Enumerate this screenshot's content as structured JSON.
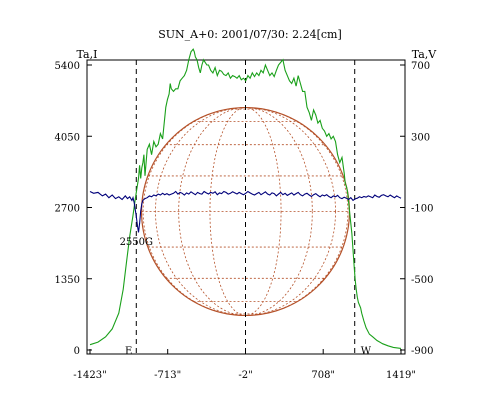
{
  "chart_data": {
    "type": "line",
    "title": "SUN_A+0: 2001/07/30: 2.24[cm]",
    "left_axis": {
      "label": "Ta,I",
      "ticks": [
        0,
        1350,
        2700,
        4050,
        5400
      ],
      "tick_labels": [
        "0",
        "1350",
        "2700",
        "4050",
        "5400"
      ],
      "range": [
        0,
        5400
      ]
    },
    "right_axis": {
      "label": "Ta,V",
      "ticks": [
        -900,
        -500,
        -100,
        300,
        700
      ],
      "tick_labels": [
        "-900",
        "-500",
        "-100",
        "300",
        "700"
      ],
      "range": [
        -900,
        700
      ]
    },
    "x_axis": {
      "ticks": [
        -1423,
        -713,
        -2,
        708,
        1419
      ],
      "tick_labels": [
        "-1423\"",
        "-713\"",
        "-2\"",
        "708\"",
        "1419\""
      ],
      "range": [
        -1423,
        1419
      ]
    },
    "limb_markers": {
      "east": {
        "label": "E",
        "x": -1000
      },
      "center": {
        "x": -2
      },
      "west": {
        "label": "W",
        "x": 996
      }
    },
    "annotations": [
      {
        "text": "2550G",
        "x": -1000,
        "y_v": -250
      }
    ],
    "sun_disk": {
      "center_x": -2,
      "radius_arcsec": 950,
      "color": "#b5522a"
    },
    "grid": false,
    "series": [
      {
        "axis": "left",
        "color": "#1aa01a",
        "x": [
          -1423,
          -1350,
          -1280,
          -1220,
          -1160,
          -1120,
          -1090,
          -1060,
          -1030,
          -1010,
          -995,
          -980,
          -970,
          -960,
          -950,
          -940,
          -930,
          -920,
          -900,
          -880,
          -860,
          -840,
          -820,
          -800,
          -780,
          -760,
          -745,
          -730,
          -715,
          -700,
          -690,
          -680,
          -660,
          -640,
          -620,
          -600,
          -580,
          -560,
          -540,
          -520,
          -500,
          -480,
          -470,
          -460,
          -445,
          -430,
          -415,
          -400,
          -385,
          -370,
          -355,
          -340,
          -320,
          -300,
          -280,
          -260,
          -240,
          -220,
          -200,
          -180,
          -160,
          -140,
          -120,
          -100,
          -80,
          -60,
          -40,
          -20,
          0,
          20,
          40,
          60,
          80,
          100,
          120,
          140,
          160,
          180,
          200,
          220,
          240,
          260,
          280,
          300,
          320,
          340,
          360,
          380,
          400,
          420,
          440,
          460,
          480,
          500,
          520,
          540,
          560,
          580,
          600,
          620,
          640,
          660,
          680,
          700,
          720,
          740,
          760,
          780,
          800,
          820,
          840,
          860,
          880,
          900,
          910,
          920,
          930,
          940,
          950,
          960,
          970,
          980,
          990,
          1000,
          1010,
          1020,
          1030,
          1040,
          1050,
          1060,
          1080,
          1100,
          1130,
          1160,
          1200,
          1250,
          1300,
          1350,
          1419
        ],
        "y": [
          100,
          150,
          250,
          400,
          700,
          1150,
          1650,
          2150,
          2550,
          2850,
          3050,
          3250,
          3500,
          3250,
          3450,
          3550,
          3700,
          3300,
          3800,
          3900,
          3700,
          3950,
          3850,
          3900,
          4100,
          4000,
          4300,
          4600,
          4750,
          4850,
          5050,
          4950,
          4900,
          4950,
          4950,
          5100,
          5150,
          5200,
          5300,
          5500,
          5650,
          5700,
          5650,
          5550,
          5500,
          5350,
          5250,
          5400,
          5500,
          5450,
          5400,
          5400,
          5300,
          5250,
          5350,
          5200,
          5300,
          5280,
          5220,
          5200,
          5250,
          5150,
          5200,
          5180,
          5150,
          5200,
          5120,
          5150,
          5100,
          5200,
          5150,
          5250,
          5180,
          5250,
          5200,
          5300,
          5250,
          5400,
          5300,
          5200,
          5250,
          5180,
          5300,
          5400,
          5450,
          5500,
          5300,
          5200,
          5100,
          5050,
          5150,
          5000,
          5200,
          5050,
          4900,
          4900,
          4600,
          4500,
          4350,
          4550,
          4450,
          4300,
          4350,
          4200,
          4150,
          4050,
          4100,
          4000,
          4050,
          3950,
          3700,
          3550,
          3650,
          3350,
          3150,
          3100,
          3000,
          2800,
          2600,
          2400,
          2200,
          1900,
          1600,
          1350,
          1150,
          1000,
          900,
          850,
          800,
          700,
          550,
          420,
          300,
          250,
          180,
          120,
          80,
          50,
          30
        ]
      },
      {
        "axis": "right",
        "color": "#00007a",
        "x": [
          -1423,
          -1390,
          -1350,
          -1310,
          -1280,
          -1250,
          -1220,
          -1190,
          -1160,
          -1130,
          -1100,
          -1080,
          -1060,
          -1040,
          -1030,
          -1020,
          -1010,
          -1000,
          -990,
          -980,
          -970,
          -960,
          -950,
          -940,
          -930,
          -920,
          -900,
          -880,
          -860,
          -840,
          -820,
          -800,
          -780,
          -760,
          -740,
          -720,
          -700,
          -680,
          -660,
          -640,
          -620,
          -600,
          -580,
          -560,
          -540,
          -520,
          -500,
          -480,
          -460,
          -440,
          -420,
          -400,
          -380,
          -360,
          -340,
          -320,
          -300,
          -280,
          -260,
          -240,
          -220,
          -200,
          -180,
          -160,
          -140,
          -120,
          -100,
          -80,
          -60,
          -40,
          -20,
          0,
          20,
          40,
          60,
          80,
          100,
          120,
          140,
          160,
          180,
          200,
          220,
          240,
          260,
          280,
          300,
          320,
          340,
          360,
          380,
          400,
          420,
          440,
          460,
          480,
          500,
          520,
          540,
          560,
          580,
          600,
          620,
          640,
          660,
          680,
          700,
          720,
          740,
          760,
          780,
          800,
          820,
          840,
          860,
          880,
          900,
          920,
          940,
          960,
          980,
          1000,
          1020,
          1040,
          1060,
          1080,
          1100,
          1120,
          1140,
          1160,
          1180,
          1200,
          1220,
          1240,
          1260,
          1280,
          1300,
          1320,
          1340,
          1360,
          1380,
          1400,
          1419
        ],
        "y": [
          -10,
          -20,
          -15,
          -35,
          -25,
          -45,
          -30,
          -50,
          -40,
          -55,
          -35,
          -50,
          -40,
          -60,
          -45,
          -70,
          -110,
          -150,
          -200,
          -240,
          -190,
          -120,
          -80,
          -60,
          -55,
          -50,
          -45,
          -35,
          -40,
          -30,
          -35,
          -25,
          -30,
          -20,
          -28,
          -22,
          -30,
          -25,
          -20,
          -10,
          -25,
          -15,
          -20,
          -30,
          -18,
          -25,
          -12,
          -20,
          -28,
          -15,
          -22,
          -25,
          -10,
          -18,
          -24,
          -15,
          -20,
          -12,
          -28,
          -18,
          -22,
          -10,
          -15,
          -25,
          -20,
          -12,
          -18,
          -24,
          -15,
          -22,
          -28,
          -20,
          -10,
          -18,
          -25,
          -30,
          -22,
          -15,
          -28,
          -20,
          -12,
          -24,
          -30,
          -18,
          -22,
          -35,
          -25,
          -15,
          -28,
          -20,
          -32,
          -25,
          -18,
          -30,
          -22,
          -15,
          -28,
          -35,
          -25,
          -20,
          -30,
          -38,
          -28,
          -22,
          -32,
          -40,
          -30,
          -35,
          -28,
          -38,
          -45,
          -35,
          -40,
          -32,
          -45,
          -50,
          -42,
          -48,
          -55,
          -45,
          -60,
          -52,
          -48,
          -40,
          -45,
          -38,
          -42,
          -35,
          -40,
          -45,
          -30,
          -38,
          -42,
          -32,
          -28,
          -35,
          -40,
          -30,
          -38,
          -45,
          -35,
          -42,
          -48
        ]
      }
    ]
  }
}
